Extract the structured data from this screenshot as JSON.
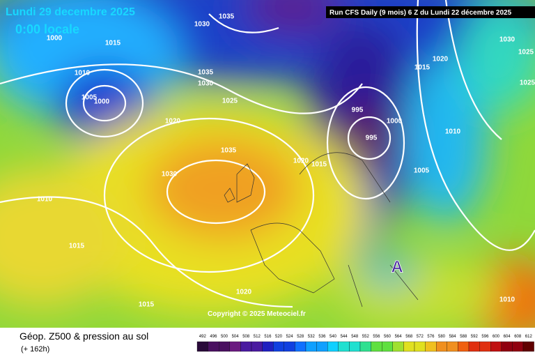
{
  "header": {
    "date": "Lundi 29 decembre 2025",
    "time": "0:00 locale",
    "run": "Run CFS Daily (9 mois) 6 Z du Lundi 22 décembre 2025"
  },
  "map": {
    "isobar_labels": [
      "1030",
      "1035",
      "1000",
      "1015",
      "1010",
      "1005",
      "1000",
      "1035",
      "1030",
      "1025",
      "1020",
      "1035",
      "1030",
      "1010",
      "1015",
      "1015",
      "1020",
      "1020",
      "1015",
      "995",
      "1000",
      "995",
      "1005",
      "1010",
      "1015",
      "1020",
      "1030",
      "1025",
      "1025",
      "1010"
    ],
    "high_marker": "A",
    "copyright": "Copyright © 2025 Meteociel.fr"
  },
  "footer": {
    "title": "Géop. Z500 & pression au sol",
    "lead": "(+ 162h)",
    "scale": [
      492,
      496,
      500,
      504,
      508,
      512,
      516,
      520,
      524,
      528,
      532,
      536,
      540,
      544,
      548,
      552,
      556,
      560,
      564,
      568,
      572,
      576,
      580,
      584,
      588,
      592,
      596,
      600,
      604,
      608,
      612
    ]
  }
}
